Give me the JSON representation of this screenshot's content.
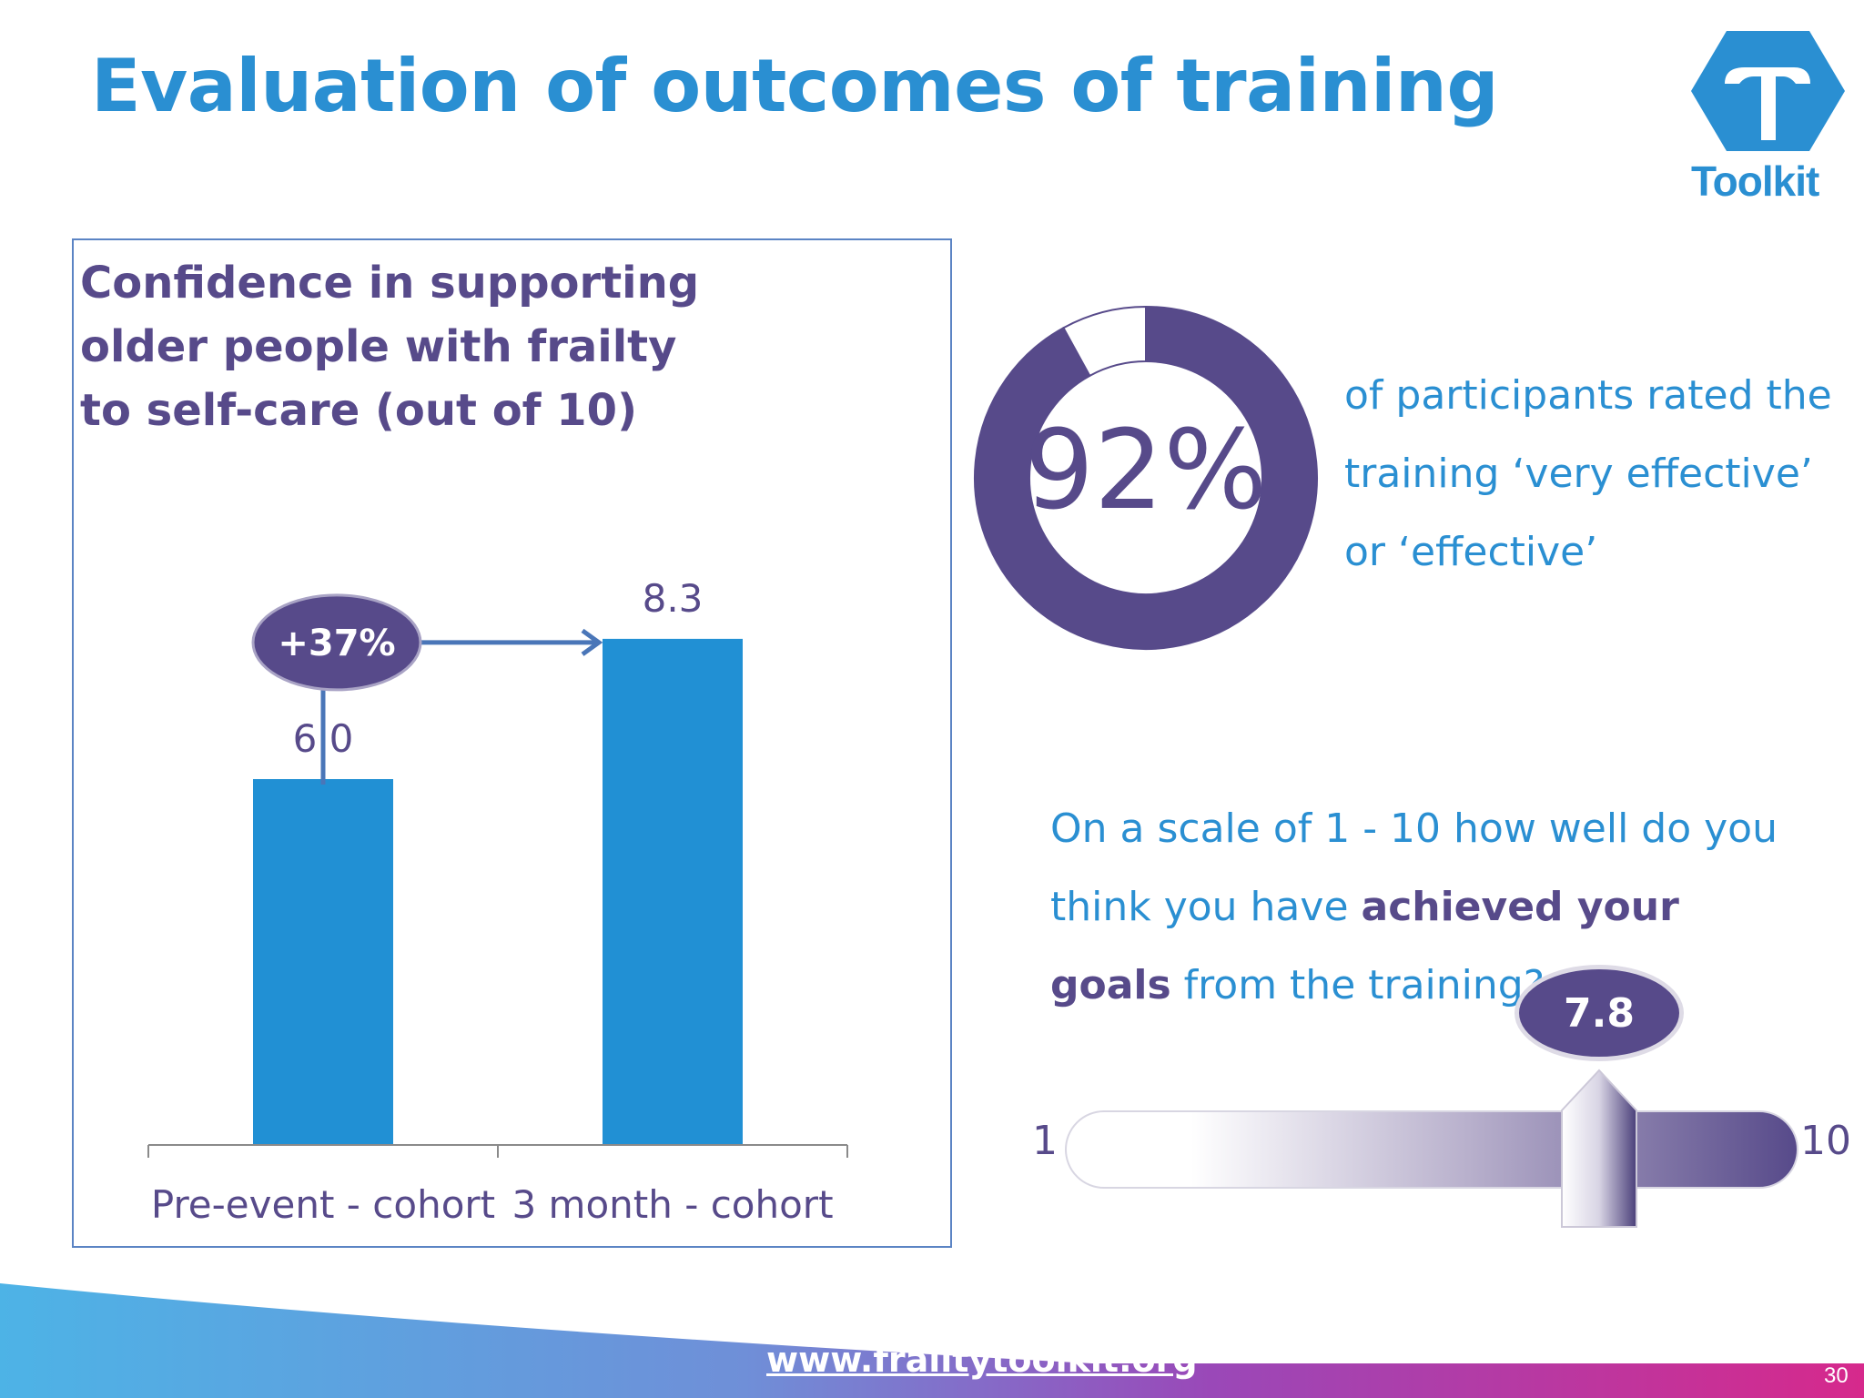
{
  "title": "Evaluation of outcomes of training",
  "logo": {
    "text": "Toolkit",
    "icon": "toolkit-hexagon-logo",
    "color": "#2a8fd2"
  },
  "chart_data": [
    {
      "type": "bar",
      "title": "Confidence in supporting older people with frailty to self-care (out of 10)",
      "categories": [
        "Pre-event - cohort",
        "3 month - cohort"
      ],
      "values": [
        6.0,
        8.3
      ],
      "value_labels": [
        "6.0",
        "8.3"
      ],
      "ylim": [
        0,
        10
      ],
      "xlabel": "",
      "ylabel": "",
      "grid": false,
      "bar_color": "#2190d4",
      "annotation": {
        "text": "+37%",
        "from": "Pre-event - cohort",
        "to": "3 month - cohort"
      }
    },
    {
      "type": "pie",
      "style": "donut",
      "slices": [
        {
          "name": "very effective or effective",
          "value": 92,
          "color": "#574a8a"
        },
        {
          "name": "other",
          "value": 8,
          "color": "#ffffff"
        }
      ],
      "center_label": "92%"
    }
  ],
  "donut_caption": "of participants rated the training ‘very effective’ or ‘effective’",
  "goals": {
    "question_before": "On a scale of 1 - 10 how well do you think you have ",
    "question_bold": "achieved your goals",
    "question_after": " from the training?",
    "scale_min": "1",
    "scale_max": "10",
    "value": 7.8,
    "value_label": "7.8"
  },
  "footer": {
    "url": "www.frailtytoolkit.org",
    "page_number": "30"
  },
  "colors": {
    "accent_blue": "#2a8fd2",
    "purple": "#574a8a"
  }
}
